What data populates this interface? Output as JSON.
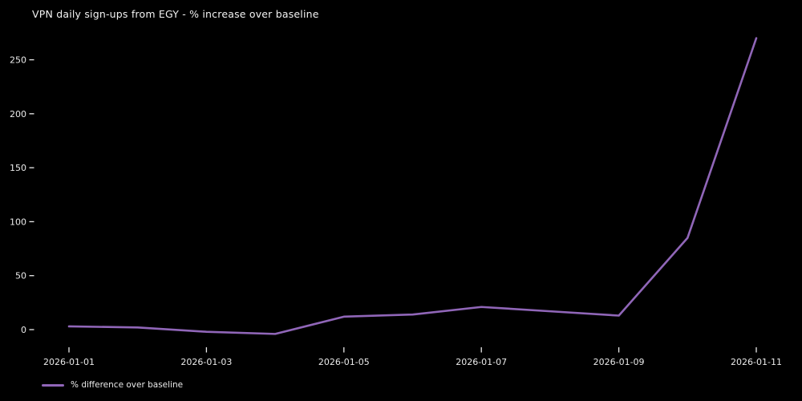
{
  "title": "VPN daily sign-ups from EGY - % increase over baseline",
  "legend": {
    "label": "% difference over baseline"
  },
  "colors": {
    "background": "#000000",
    "text": "#eaeaea",
    "line": "#9066b8"
  },
  "chart_data": {
    "type": "line",
    "title": "VPN daily sign-ups from EGY - % increase over baseline",
    "xlabel": "",
    "ylabel": "",
    "x": [
      "2026-01-01",
      "2026-01-02",
      "2026-01-03",
      "2026-01-04",
      "2026-01-05",
      "2026-01-06",
      "2026-01-07",
      "2026-01-08",
      "2026-01-09",
      "2026-01-10",
      "2026-01-11"
    ],
    "series": [
      {
        "name": "% difference over baseline",
        "values": [
          3,
          2,
          -2,
          -4,
          12,
          14,
          21,
          17,
          13,
          85,
          270
        ]
      }
    ],
    "y_ticks": [
      0,
      50,
      100,
      150,
      200,
      250
    ],
    "x_tick_labels": [
      "2026-01-01",
      "2026-01-03",
      "2026-01-05",
      "2026-01-07",
      "2026-01-09",
      "2026-01-11"
    ],
    "x_tick_step": 2,
    "ylim": [
      -16,
      283
    ],
    "grid": false,
    "legend_position": "bottom-left",
    "background": "dark"
  }
}
